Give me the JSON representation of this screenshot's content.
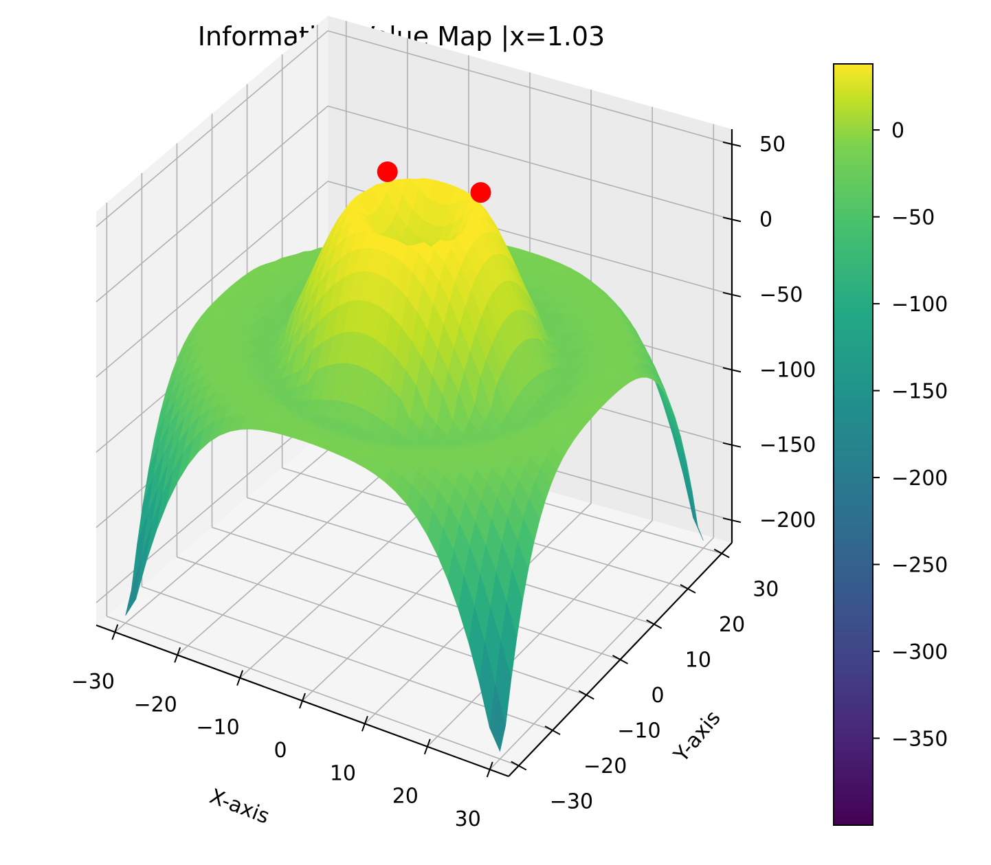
{
  "chart_data": {
    "type": "surface3d",
    "title": "Information Value Map |x=1.03",
    "xlabel": "X-axis",
    "ylabel": "Y-axis",
    "zlabel": "",
    "x_ticks": [
      -30,
      -20,
      -10,
      0,
      10,
      20,
      30
    ],
    "y_ticks": [
      -30,
      -20,
      -10,
      0,
      10,
      20,
      30
    ],
    "z_ticks": [
      -200,
      -150,
      -100,
      -50,
      0,
      50
    ],
    "xlim": [
      -33,
      33
    ],
    "ylim": [
      -33,
      33
    ],
    "zlim": [
      -215,
      60
    ],
    "x_tick_labels": [
      "−30",
      "−20",
      "−10",
      "0",
      "10",
      "20",
      "30"
    ],
    "y_tick_labels": [
      "−30",
      "−20",
      "−10",
      "0",
      "10",
      "20",
      "30"
    ],
    "z_tick_labels": [
      "−200",
      "−150",
      "−100",
      "−50",
      "0",
      "50"
    ],
    "surface": {
      "description_formula": "ring-shaped surface",
      "x_range": [
        -30,
        30
      ],
      "y_range": [
        -30,
        30
      ],
      "peak_ring_radius": 8,
      "peak_value": 40,
      "center_value": 5,
      "corner_value": -200
    },
    "highlight_points": [
      {
        "x": -8,
        "y": 6,
        "z": 42
      },
      {
        "x": 6,
        "y": 8,
        "z": 42
      }
    ],
    "highlight_color": "#ff0000",
    "colorbar": {
      "colormap": "viridis",
      "range": [
        -400,
        38
      ],
      "ticks": [
        0,
        -50,
        -100,
        -150,
        -200,
        -250,
        -300,
        -350
      ],
      "tick_labels": [
        "0",
        "−50",
        "−100",
        "−150",
        "−200",
        "−250",
        "−300",
        "−350"
      ]
    },
    "grid": true
  }
}
